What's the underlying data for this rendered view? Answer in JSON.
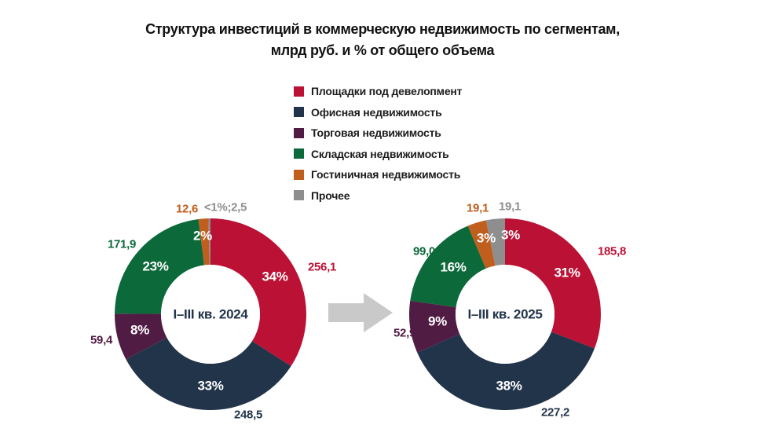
{
  "title": {
    "line1": "Структура инвестиций в коммерческую недвижимость по сегментам,",
    "line2": "млрд руб. и % от общего объема"
  },
  "legend": {
    "items": [
      {
        "key": "development-sites",
        "label": "Площадки под девелопмент",
        "color": "#BB1134"
      },
      {
        "key": "office",
        "label": "Офисная недвижимость",
        "color": "#22344A"
      },
      {
        "key": "retail",
        "label": "Торговая недвижимость",
        "color": "#511C43"
      },
      {
        "key": "warehouse",
        "label": "Складская недвижимость",
        "color": "#0C693A"
      },
      {
        "key": "hotel",
        "label": "Гостиничная недвижимость",
        "color": "#C05E1E"
      },
      {
        "key": "other",
        "label": "Прочее",
        "color": "#8E8E8E"
      }
    ]
  },
  "chart_data": {
    "type": "pie",
    "subtype": "donut-pair",
    "title": "Структура инвестиций в коммерческую недвижимость по сегментам, млрд руб. и % от общего объема",
    "unit_note": "млрд руб. и % от общего объема",
    "legend_position": "top-center",
    "categories": [
      "Площадки под девелопмент",
      "Офисная недвижимость",
      "Торговая недвижимость",
      "Складская недвижимость",
      "Гостиничная недвижимость",
      "Прочее"
    ],
    "colors": [
      "#BB1134",
      "#22344A",
      "#511C43",
      "#0C693A",
      "#C05E1E",
      "#8E8E8E"
    ],
    "charts": [
      {
        "center_label": "I–III кв. 2024",
        "values": [
          256.1,
          248.5,
          59.4,
          171.9,
          12.6,
          2.5
        ],
        "value_labels": [
          "256,1",
          "248,5",
          "59,4",
          "171,9",
          "12,6",
          "<1%;2,5"
        ],
        "percent_labels": [
          "34%",
          "33%",
          "8%",
          "23%",
          "2%",
          ""
        ]
      },
      {
        "center_label": "I–III кв. 2025",
        "values": [
          185.8,
          227.2,
          52.9,
          99.0,
          19.1,
          19.1
        ],
        "value_labels": [
          "185,8",
          "227,2",
          "52,9",
          "99,0",
          "19,1",
          "19,1"
        ],
        "percent_labels": [
          "31%",
          "38%",
          "9%",
          "16%",
          "3%",
          "3%"
        ]
      }
    ]
  },
  "arrow": {
    "name": "transition-arrow",
    "color": "#C9C9C9"
  }
}
